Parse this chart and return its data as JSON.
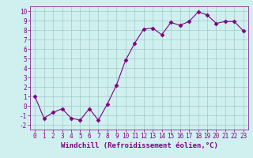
{
  "xlabel": "Windchill (Refroidissement éolien,°C)",
  "ylabel": "",
  "x_values": [
    0,
    1,
    2,
    3,
    4,
    5,
    6,
    7,
    8,
    9,
    10,
    11,
    12,
    13,
    14,
    15,
    16,
    17,
    18,
    19,
    20,
    21,
    22,
    23
  ],
  "y_values": [
    1,
    -1.3,
    -0.7,
    -0.3,
    -1.3,
    -1.5,
    -0.3,
    -1.5,
    0.2,
    2.2,
    4.8,
    6.6,
    8.1,
    8.2,
    7.5,
    8.8,
    8.5,
    8.9,
    9.9,
    9.6,
    8.7,
    8.9,
    8.9,
    7.9
  ],
  "line_color": "#800080",
  "marker": "D",
  "marker_size": 2.5,
  "bg_color": "#d0f0f0",
  "grid_color": "#a0c8c8",
  "xlim": [
    -0.5,
    23.5
  ],
  "ylim": [
    -2.5,
    10.5
  ],
  "yticks": [
    -2,
    -1,
    0,
    1,
    2,
    3,
    4,
    5,
    6,
    7,
    8,
    9,
    10
  ],
  "xticks": [
    0,
    1,
    2,
    3,
    4,
    5,
    6,
    7,
    8,
    9,
    10,
    11,
    12,
    13,
    14,
    15,
    16,
    17,
    18,
    19,
    20,
    21,
    22,
    23
  ],
  "tick_color": "#800080",
  "label_color": "#800080",
  "tick_fontsize": 5.5,
  "xlabel_fontsize": 6.5
}
